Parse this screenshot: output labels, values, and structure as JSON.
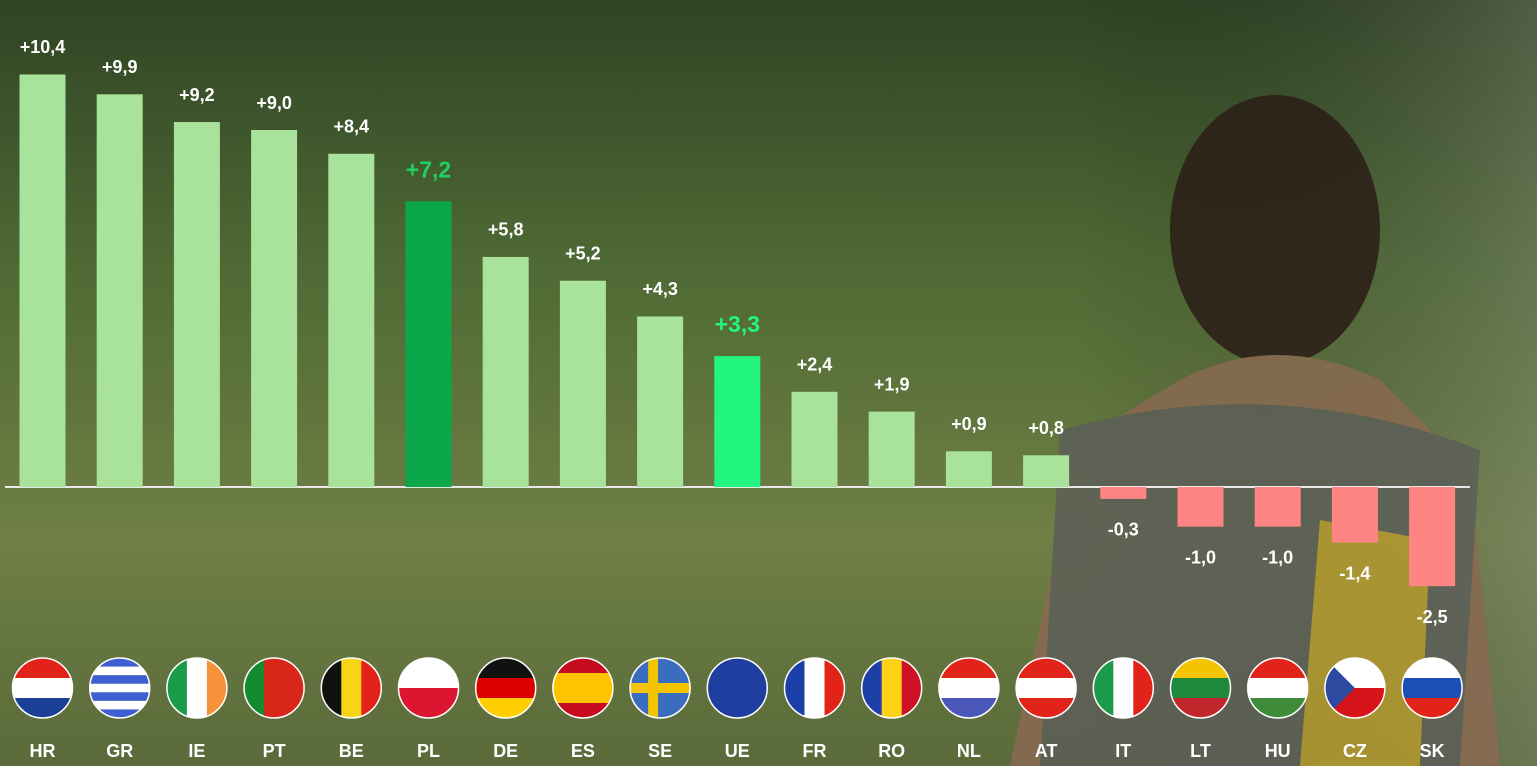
{
  "chart_data": {
    "type": "bar",
    "categories": [
      "HR",
      "GR",
      "IE",
      "PT",
      "BE",
      "PL",
      "DE",
      "ES",
      "SE",
      "UE",
      "FR",
      "RO",
      "NL",
      "AT",
      "IT",
      "LT",
      "HU",
      "CZ",
      "SK"
    ],
    "values": [
      10.4,
      9.9,
      9.2,
      9.0,
      8.4,
      7.2,
      5.8,
      5.2,
      4.3,
      3.3,
      2.4,
      1.9,
      0.9,
      0.8,
      -0.3,
      -1.0,
      -1.0,
      -1.4,
      -2.5
    ],
    "value_labels": [
      "+10,4",
      "+9,9",
      "+9,2",
      "+9,0",
      "+8,4",
      "+7,2",
      "+5,8",
      "+5,2",
      "+4,3",
      "+3,3",
      "+2,4",
      "+1,9",
      "+0,9",
      "+0,8",
      "-0,3",
      "-1,0",
      "-1,0",
      "-1,4",
      "-2,5"
    ],
    "colors": [
      "#a9e29b",
      "#a9e29b",
      "#a9e29b",
      "#a9e29b",
      "#a9e29b",
      "#0aa84a",
      "#a9e29b",
      "#a9e29b",
      "#a9e29b",
      "#22f580",
      "#a9e29b",
      "#a9e29b",
      "#a9e29b",
      "#a9e29b",
      "#ff8585",
      "#ff8585",
      "#ff8585",
      "#ff8585",
      "#ff8585"
    ],
    "label_colors": [
      "#ffffff",
      "#ffffff",
      "#ffffff",
      "#ffffff",
      "#ffffff",
      "#1fd063",
      "#ffffff",
      "#ffffff",
      "#ffffff",
      "#22f580",
      "#ffffff",
      "#ffffff",
      "#ffffff",
      "#ffffff",
      "#ffffff",
      "#ffffff",
      "#ffffff",
      "#ffffff",
      "#ffffff"
    ],
    "ylim": [
      -3,
      12
    ]
  }
}
